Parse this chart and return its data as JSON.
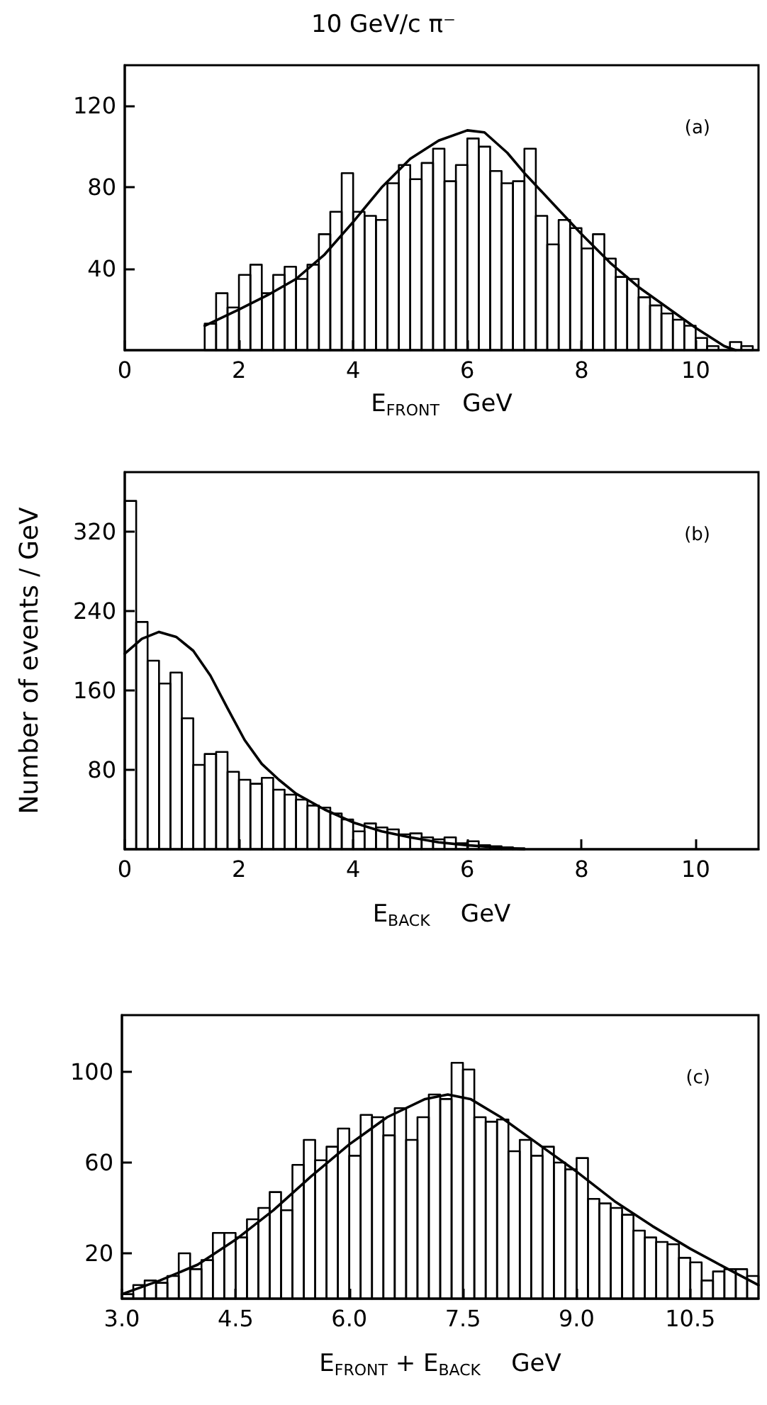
{
  "chart_data": [
    {
      "type": "histogram",
      "title": "10 GeV/c π⁻",
      "xlabel": "E$_{FRONT}$   GeV",
      "annotations": [
        "(a)"
      ],
      "xlim": [
        0,
        11.1
      ],
      "ylim": [
        0,
        140
      ],
      "xticks": [
        0,
        2,
        4,
        6,
        8,
        10
      ],
      "yticks": [
        40,
        80,
        120
      ],
      "grid": false,
      "series": [
        {
          "type": "histogram",
          "color": "#000000",
          "bins": [
            1.4,
            1.6,
            1.8,
            2.0,
            2.2,
            2.4,
            2.6,
            2.8,
            3.0,
            3.2,
            3.4,
            3.6,
            3.8,
            4.0,
            4.2,
            4.4,
            4.6,
            4.8,
            5.0,
            5.2,
            5.4,
            5.6,
            5.8,
            6.0,
            6.2,
            6.4,
            6.6,
            6.8,
            7.0,
            7.2,
            7.4,
            7.6,
            7.8,
            8.0,
            8.2,
            8.4,
            8.6,
            8.8,
            9.0,
            9.2,
            9.4,
            9.6,
            9.8,
            10.0,
            10.2,
            10.4,
            10.6,
            10.8,
            11.0
          ],
          "values": [
            13,
            28,
            21,
            37,
            42,
            28,
            37,
            41,
            35,
            42,
            57,
            68,
            87,
            68,
            66,
            64,
            82,
            91,
            84,
            92,
            99,
            83,
            91,
            104,
            100,
            88,
            82,
            83,
            99,
            66,
            52,
            64,
            60,
            50,
            57,
            45,
            36,
            35,
            26,
            22,
            18,
            15,
            12,
            6,
            2,
            0,
            4,
            2
          ]
        },
        {
          "type": "line",
          "color": "#000000",
          "x": [
            1.4,
            2,
            2.5,
            3,
            3.5,
            4,
            4.5,
            5,
            5.5,
            6,
            6.3,
            6.7,
            7,
            7.5,
            8,
            8.5,
            9,
            9.5,
            10,
            10.5,
            10.7
          ],
          "values": [
            12,
            20,
            27,
            35,
            47,
            63,
            80,
            94,
            103,
            108,
            107,
            97,
            87,
            72,
            57,
            43,
            31,
            21,
            11,
            2,
            0
          ]
        }
      ]
    },
    {
      "type": "histogram",
      "xlabel": "E$_{BACK}$    GeV",
      "ylabel": "Number of events / GeV",
      "annotations": [
        "(b)"
      ],
      "xlim": [
        0,
        11.1
      ],
      "ylim": [
        0,
        380
      ],
      "xticks": [
        0,
        2,
        4,
        6,
        8,
        10
      ],
      "yticks": [
        80,
        160,
        240,
        320
      ],
      "grid": false,
      "series": [
        {
          "type": "histogram",
          "color": "#000000",
          "bins": [
            0,
            0.2,
            0.4,
            0.6,
            0.8,
            1.0,
            1.2,
            1.4,
            1.6,
            1.8,
            2.0,
            2.2,
            2.4,
            2.6,
            2.8,
            3.0,
            3.2,
            3.4,
            3.6,
            3.8,
            4.0,
            4.2,
            4.4,
            4.6,
            4.8,
            5.0,
            5.2,
            5.4,
            5.6,
            5.8,
            6.0,
            6.2,
            6.4,
            6.6,
            6.8,
            7.0
          ],
          "values": [
            351,
            229,
            190,
            167,
            178,
            132,
            85,
            96,
            98,
            78,
            70,
            66,
            72,
            60,
            55,
            50,
            44,
            42,
            36,
            30,
            18,
            26,
            22,
            20,
            15,
            16,
            12,
            10,
            12,
            6,
            8,
            4,
            3,
            2,
            1
          ]
        },
        {
          "type": "line",
          "color": "#000000",
          "x": [
            0,
            0.3,
            0.6,
            0.9,
            1.2,
            1.5,
            1.8,
            2.1,
            2.4,
            2.7,
            3,
            3.5,
            4,
            4.5,
            5,
            5.5,
            6,
            6.5,
            7
          ],
          "values": [
            197,
            212,
            219,
            214,
            200,
            175,
            142,
            110,
            86,
            70,
            56,
            40,
            27,
            18,
            12,
            7,
            4,
            2,
            0
          ]
        }
      ]
    },
    {
      "type": "histogram",
      "xlabel": "E$_{FRONT}$ + E$_{BACK}$    GeV",
      "annotations": [
        "(c)"
      ],
      "xlim": [
        3,
        11.4
      ],
      "ylim": [
        0,
        125
      ],
      "xticks": [
        {
          "value": 3,
          "label": "3.0"
        },
        {
          "value": 4.5,
          "label": "4.5"
        },
        {
          "value": 6,
          "label": "6.0"
        },
        {
          "value": 7.5,
          "label": "7.5"
        },
        {
          "value": 9,
          "label": "9.0"
        },
        {
          "value": 10.5,
          "label": "10.5"
        }
      ],
      "yticks": [
        20,
        60,
        100
      ],
      "grid": false,
      "series": [
        {
          "type": "histogram",
          "color": "#000000",
          "bins": [
            3,
            3.15,
            3.3,
            3.45,
            3.6,
            3.75,
            3.9,
            4.05,
            4.2,
            4.35,
            4.5,
            4.65,
            4.8,
            4.95,
            5.1,
            5.25,
            5.4,
            5.55,
            5.7,
            5.85,
            6,
            6.15,
            6.3,
            6.45,
            6.6,
            6.75,
            6.9,
            7.05,
            7.2,
            7.35,
            7.5,
            7.65,
            7.8,
            7.95,
            8.1,
            8.25,
            8.4,
            8.55,
            8.7,
            8.85,
            9,
            9.15,
            9.3,
            9.45,
            9.6,
            9.75,
            9.9,
            10.05,
            10.2,
            10.35,
            10.5,
            10.65,
            10.8,
            10.95,
            11.1,
            11.25,
            11.4
          ],
          "values": [
            2,
            6,
            8,
            7,
            10,
            20,
            13,
            17,
            29,
            29,
            27,
            35,
            40,
            47,
            39,
            59,
            70,
            61,
            67,
            75,
            63,
            81,
            80,
            72,
            84,
            70,
            80,
            90,
            88,
            104,
            101,
            80,
            78,
            79,
            65,
            70,
            63,
            67,
            60,
            57,
            62,
            44,
            42,
            40,
            37,
            30,
            27,
            25,
            24,
            18,
            16,
            8,
            12,
            13,
            13,
            10
          ]
        },
        {
          "type": "line",
          "color": "#000000",
          "x": [
            3,
            3.5,
            4,
            4.5,
            5,
            5.5,
            6,
            6.5,
            7,
            7.3,
            7.6,
            8,
            8.5,
            9,
            9.5,
            10,
            10.5,
            11,
            11.4
          ],
          "values": [
            2,
            8,
            15,
            26,
            39,
            54,
            68,
            80,
            88,
            90,
            88,
            80,
            68,
            56,
            43,
            32,
            22,
            13,
            6
          ]
        }
      ]
    }
  ]
}
